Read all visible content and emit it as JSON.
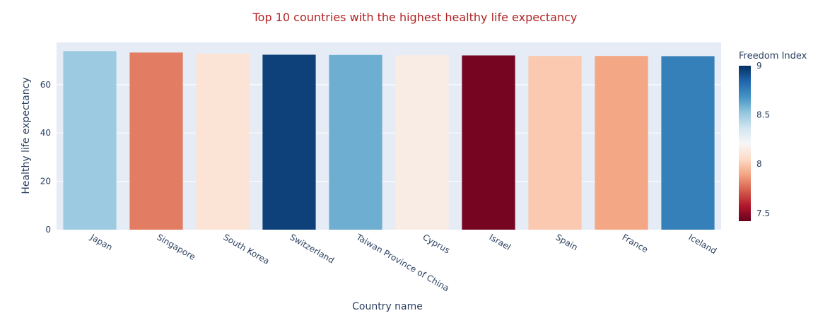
{
  "chart_data": {
    "type": "bar",
    "title": "Top 10 countries with the highest healthy life expectancy",
    "xlabel": "Country name",
    "ylabel": "Healthy life expectancy",
    "ylim": [
      0,
      77.5
    ],
    "yticks": [
      0,
      20,
      40,
      60
    ],
    "categories": [
      "Japan",
      "Singapore",
      "South Korea",
      "Switzerland",
      "Taiwan Province of China",
      "Cyprus",
      "Israel",
      "Spain",
      "France",
      "Iceland"
    ],
    "values": [
      73.9,
      73.3,
      72.9,
      72.4,
      72.3,
      72.2,
      72.1,
      71.9,
      71.9,
      71.8
    ],
    "freedom_index": [
      8.5,
      7.8,
      8.1,
      8.95,
      8.6,
      8.15,
      7.45,
      8.0,
      7.9,
      8.75
    ],
    "colorbar": {
      "title": "Freedom Index",
      "range": [
        7.42,
        9.0
      ],
      "ticks": [
        "7.5",
        "8",
        "8.5",
        "9"
      ],
      "colorscale": "RdBu"
    },
    "grid": true,
    "legend": "right"
  }
}
